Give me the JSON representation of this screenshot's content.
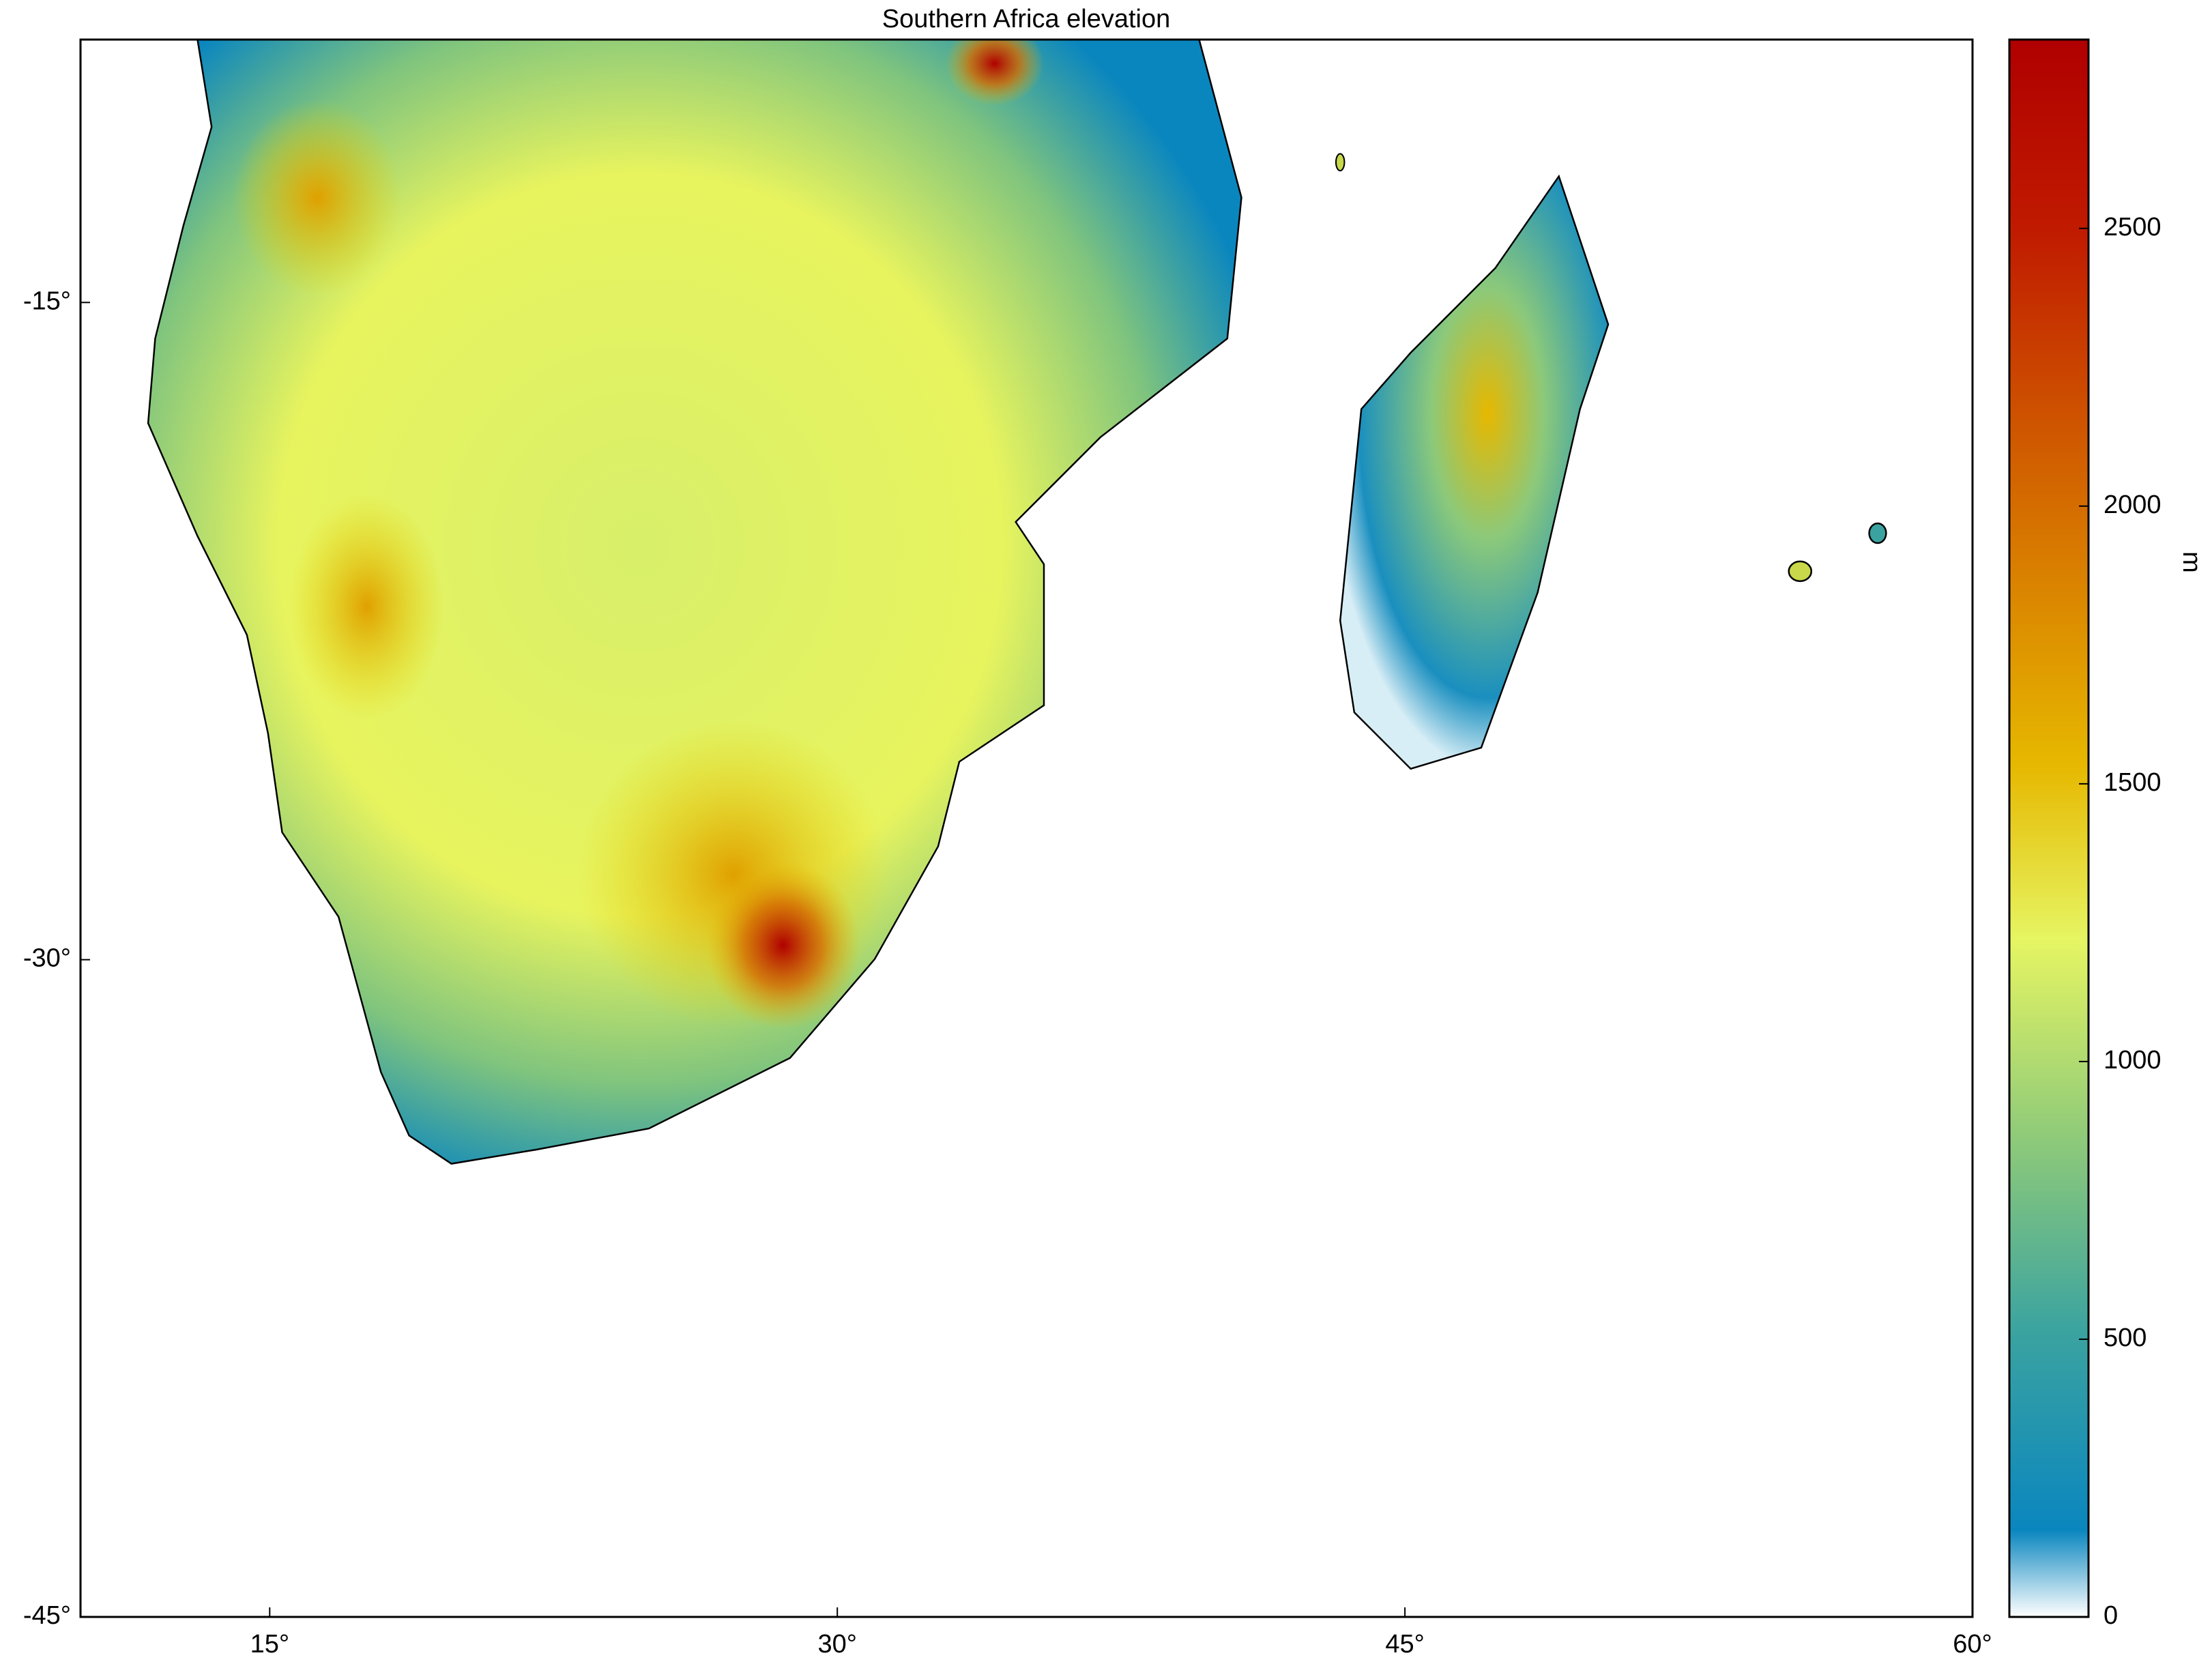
{
  "chart_data": {
    "type": "map",
    "title": "Southern Africa elevation",
    "xlim": [
      10,
      60
    ],
    "ylim": [
      -45,
      -9
    ],
    "xticks": [
      {
        "value": 15,
        "label": "15°"
      },
      {
        "value": 30,
        "label": "30°"
      },
      {
        "value": 45,
        "label": "45°"
      },
      {
        "value": 60,
        "label": "60°"
      }
    ],
    "yticks": [
      {
        "value": -15,
        "label": "-15°"
      },
      {
        "value": -30,
        "label": "-30°"
      },
      {
        "value": -45,
        "label": "-45°"
      }
    ],
    "colorbar": {
      "label": "m",
      "lim": [
        0,
        2840
      ],
      "ticks": [
        0,
        500,
        1000,
        1500,
        2000,
        2500
      ]
    }
  }
}
